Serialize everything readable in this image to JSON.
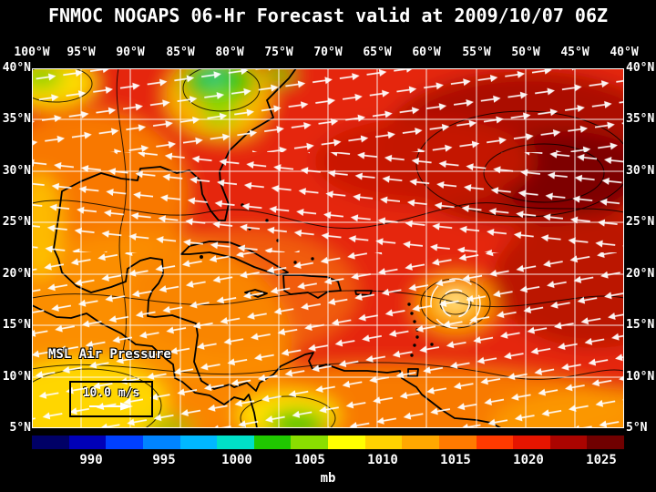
{
  "title": "FNMOC NOGAPS 06-Hr Forecast valid at 2009/10/07 06Z",
  "axes": {
    "lon": [
      "100°W",
      "95°W",
      "90°W",
      "85°W",
      "80°W",
      "75°W",
      "70°W",
      "65°W",
      "60°W",
      "55°W",
      "50°W",
      "45°W",
      "40°W"
    ],
    "lat": [
      "40°N",
      "35°N",
      "30°N",
      "25°N",
      "20°N",
      "15°N",
      "10°N",
      "5°N"
    ]
  },
  "map": {
    "field_label": "MSL Air Pressure",
    "wind_reference_label": "10.0 m/s"
  },
  "colorbar": {
    "unit": "mb",
    "labels": [
      "990",
      "995",
      "1000",
      "1005",
      "1010",
      "1015",
      "1020",
      "1025"
    ],
    "colors": [
      "#000066",
      "#0000b8",
      "#0040ff",
      "#0084ff",
      "#00b8ff",
      "#00e0c8",
      "#20c800",
      "#8ade00",
      "#ffff00",
      "#ffd200",
      "#ffa800",
      "#ff7a00",
      "#ff3a00",
      "#e51500",
      "#aa0400",
      "#700000"
    ]
  },
  "chart_data": {
    "type": "heatmap",
    "title": "FNMOC NOGAPS 06-Hr Forecast valid at 2009/10/07 06Z",
    "field": "MSL Air Pressure",
    "unit": "mb",
    "colorbar_ticks": [
      990,
      995,
      1000,
      1005,
      1010,
      1015,
      1020,
      1025
    ],
    "lon_ticks": [
      "100°W",
      "95°W",
      "90°W",
      "85°W",
      "80°W",
      "75°W",
      "70°W",
      "65°W",
      "60°W",
      "55°W",
      "50°W",
      "45°W",
      "40°W"
    ],
    "lat_ticks": [
      "40°N",
      "35°N",
      "30°N",
      "25°N",
      "20°N",
      "15°N",
      "10°N",
      "5°N"
    ],
    "grid_interval_deg": 5,
    "wind_reference": "10.0 m/s",
    "notes": "Pressure mostly 1010-1022 mb (red/orange); dark-red subtropical high >1020 mb in NE Atlantic; yellow-green lows ~1005-1010 mb over SW Caribbean, E Pacific and near 85°W 40°N; white wind vectors with easterly trades in the south and westerlies in the north; small cyclonic swirl near 57°W 17°N"
  }
}
